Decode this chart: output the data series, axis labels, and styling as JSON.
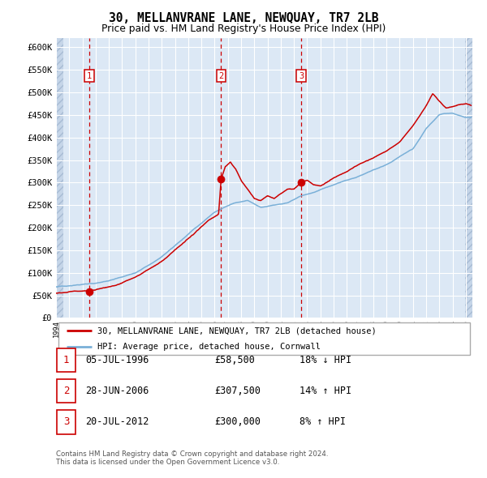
{
  "title": "30, MELLANVRANE LANE, NEWQUAY, TR7 2LB",
  "subtitle": "Price paid vs. HM Land Registry's House Price Index (HPI)",
  "hpi_color": "#7ab0d8",
  "price_color": "#cc0000",
  "plot_bg_color": "#dce8f5",
  "grid_color": "#ffffff",
  "sale_points": [
    {
      "date_num": 1996.51,
      "price": 58500,
      "label": "1"
    },
    {
      "date_num": 2006.49,
      "price": 307500,
      "label": "2"
    },
    {
      "date_num": 2012.55,
      "price": 300000,
      "label": "3"
    }
  ],
  "sale_labels_info": [
    {
      "num": "1",
      "date": "05-JUL-1996",
      "price": "£58,500",
      "change": "18% ↓ HPI"
    },
    {
      "num": "2",
      "date": "28-JUN-2006",
      "price": "£307,500",
      "change": "14% ↑ HPI"
    },
    {
      "num": "3",
      "date": "20-JUL-2012",
      "price": "£300,000",
      "change": "8% ↑ HPI"
    }
  ],
  "xmin": 1994.0,
  "xmax": 2025.5,
  "ymin": 0,
  "ymax": 620000,
  "yticks": [
    0,
    50000,
    100000,
    150000,
    200000,
    250000,
    300000,
    350000,
    400000,
    450000,
    500000,
    550000,
    600000
  ],
  "ytick_labels": [
    "£0",
    "£50K",
    "£100K",
    "£150K",
    "£200K",
    "£250K",
    "£300K",
    "£350K",
    "£400K",
    "£450K",
    "£500K",
    "£550K",
    "£600K"
  ],
  "footnote": "Contains HM Land Registry data © Crown copyright and database right 2024.\nThis data is licensed under the Open Government Licence v3.0.",
  "legend_line1": "30, MELLANVRANE LANE, NEWQUAY, TR7 2LB (detached house)",
  "legend_line2": "HPI: Average price, detached house, Cornwall"
}
